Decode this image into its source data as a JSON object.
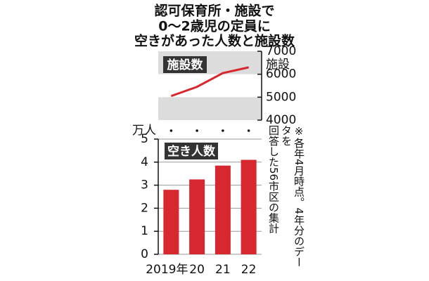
{
  "title": [
    "認可保育所・施設で",
    "0～2歳児の定員に",
    "空きがあった人数と施設数"
  ],
  "note": [
    "※各年4月時点。4年分のデータを",
    "回答した56市区の集計"
  ],
  "chart_data": [
    {
      "type": "line",
      "label": "施設数",
      "axis_label": "施設",
      "color": "#d7282f",
      "values": [
        5050,
        5450,
        6050,
        6300
      ],
      "ylim": [
        4000,
        7000
      ],
      "yticks": [
        7000,
        6000,
        5000,
        4000
      ]
    },
    {
      "type": "bar",
      "label": "空き人数",
      "axis_label": "万人",
      "color": "#d7282f",
      "categories": [
        "2019年",
        "20",
        "21",
        "22"
      ],
      "values": [
        2.8,
        3.25,
        3.85,
        4.1
      ],
      "ylim": [
        0,
        5
      ],
      "yticks": [
        0,
        1,
        2,
        3,
        4,
        5
      ],
      "grid": true
    }
  ]
}
